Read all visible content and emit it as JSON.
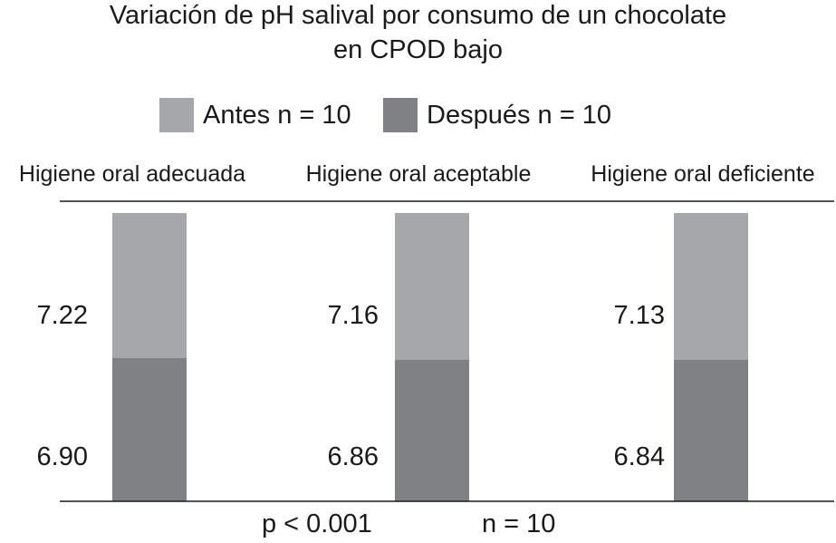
{
  "title_line1": "Variación de pH salival por consumo de un chocolate",
  "title_line2": "en  CPOD bajo",
  "legend": [
    {
      "label": "Antes n = 10",
      "color": "#a6a7aa"
    },
    {
      "label": "Después n = 10",
      "color": "#808184"
    }
  ],
  "footer": {
    "p_value": "p < 0.001",
    "n": "n = 10"
  },
  "colors": {
    "antes": "#a6a7aa",
    "despues": "#808184",
    "axis": "#1a1a1a",
    "background": "#ffffff"
  },
  "chart_data": {
    "type": "bar",
    "stacked": true,
    "title": "Variación de pH salival por consumo de un chocolate en  CPOD bajo",
    "categories": [
      "Higiene oral adecuada",
      "Higiene oral aceptable",
      "Higiene oral deficiente"
    ],
    "series": [
      {
        "name": "Antes n = 10",
        "values": [
          7.22,
          7.16,
          7.13
        ]
      },
      {
        "name": "Después n = 10",
        "values": [
          6.9,
          6.86,
          6.84
        ]
      }
    ],
    "value_labels": {
      "antes": [
        "7.22",
        "7.16",
        "7.13"
      ],
      "despues": [
        "6.90",
        "6.86",
        "6.84"
      ]
    },
    "legend_position": "top",
    "grid": false
  }
}
